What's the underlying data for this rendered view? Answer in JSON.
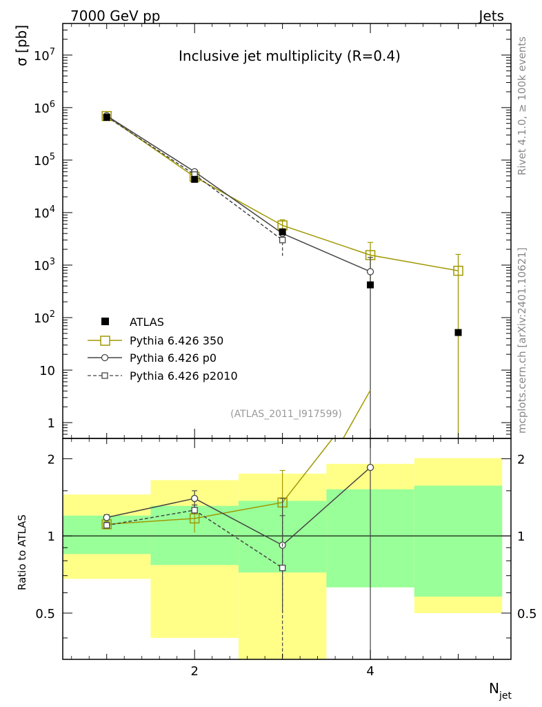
{
  "header": {
    "left": "7000 GeV pp",
    "right": "Jets"
  },
  "side_labels": {
    "rivet": "Rivet 4.1.0, ≥ 100k events",
    "mcplots": "mcplots.cern.ch [arXiv:2401.10621]"
  },
  "chart_data": {
    "type": "line",
    "title": "Inclusive jet multiplicity (R=0.4)",
    "analysis_tag": "(ATLAS_2011_I917599)",
    "xlabel": "N",
    "xlabel_sub": "jet",
    "ylabel": "σ [pb]",
    "ratio_ylabel": "Ratio to ATLAS",
    "xlim": [
      0.5,
      5.6
    ],
    "ylim": [
      0.5,
      40000000
    ],
    "ratio_ylim": [
      0.33,
      2.4
    ],
    "x_ticks": [
      {
        "v": 2,
        "label": "2"
      },
      {
        "v": 4,
        "label": "4"
      }
    ],
    "y_ticks": [
      {
        "v": 1,
        "label": "1"
      },
      {
        "v": 10,
        "label": "10"
      },
      {
        "v": 100,
        "label": "10",
        "exp": "2"
      },
      {
        "v": 1000,
        "label": "10",
        "exp": "3"
      },
      {
        "v": 10000,
        "label": "10",
        "exp": "4"
      },
      {
        "v": 100000,
        "label": "10",
        "exp": "5"
      },
      {
        "v": 1000000,
        "label": "10",
        "exp": "6"
      },
      {
        "v": 10000000,
        "label": "10",
        "exp": "7"
      }
    ],
    "ratio_ticks": [
      {
        "v": 0.5,
        "label": "0.5"
      },
      {
        "v": 1,
        "label": "1"
      },
      {
        "v": 2,
        "label": "2"
      }
    ],
    "data": {
      "name": "ATLAS",
      "x": [
        1,
        2,
        3,
        4,
        5
      ],
      "y": [
        650000,
        43000,
        4300,
        420,
        52
      ],
      "bins": [
        [
          0.5,
          1.5
        ],
        [
          1.5,
          2.5
        ],
        [
          2.5,
          3.5
        ],
        [
          3.5,
          4.5
        ],
        [
          4.5,
          5.5
        ]
      ],
      "band_green": [
        [
          0.85,
          1.2
        ],
        [
          0.77,
          1.31
        ],
        [
          0.72,
          1.37
        ],
        [
          0.63,
          1.52
        ],
        [
          0.58,
          1.57
        ]
      ],
      "band_yellow": [
        [
          0.68,
          1.45
        ],
        [
          0.4,
          1.65
        ],
        [
          0.33,
          1.75
        ],
        [
          0.63,
          1.91
        ],
        [
          0.5,
          2.01
        ]
      ]
    },
    "series": [
      {
        "name": "Pythia 6.426 350",
        "color": "#a09700",
        "dash": "",
        "marker": "square-large",
        "x": [
          1,
          2,
          3,
          4,
          5
        ],
        "y": [
          690000,
          48000,
          5700,
          1550,
          780
        ],
        "err_lo": [
          660000,
          40000,
          4200,
          400,
          0.3
        ],
        "err_hi": [
          720000,
          56000,
          7300,
          2700,
          1600
        ],
        "ratio": [
          1.11,
          1.17,
          1.35,
          3.7,
          15
        ],
        "ratio_err_lo": [
          1.08,
          1.03,
          0.97,
          null,
          null
        ],
        "ratio_err_hi": [
          1.14,
          1.32,
          1.8,
          null,
          null
        ]
      },
      {
        "name": "Pythia 6.426 p0",
        "color": "#444444",
        "dash": "",
        "marker": "circle",
        "x": [
          1,
          2,
          3,
          4
        ],
        "y": [
          700000,
          60000,
          4000,
          750
        ],
        "err_lo": [
          680000,
          56000,
          3500,
          0.3
        ],
        "err_hi": [
          720000,
          64000,
          4500,
          1400
        ],
        "ratio": [
          1.18,
          1.4,
          0.92,
          1.85
        ],
        "ratio_err_lo": [
          1.15,
          1.3,
          0.5,
          0.3
        ],
        "ratio_err_hi": [
          1.21,
          1.5,
          1.4,
          3.0
        ]
      },
      {
        "name": "Pythia 6.426 p2010",
        "color": "#444444",
        "dash": "5,3",
        "marker": "square-small",
        "x": [
          1,
          2,
          3
        ],
        "y": [
          670000,
          53000,
          3000
        ],
        "err_lo": [
          650000,
          48000,
          1500
        ],
        "err_hi": [
          690000,
          58000,
          4500
        ],
        "ratio": [
          1.1,
          1.26,
          0.75
        ],
        "ratio_err_lo": [
          1.07,
          1.2,
          0.3
        ],
        "ratio_err_hi": [
          1.13,
          1.32,
          1.2
        ]
      }
    ]
  }
}
